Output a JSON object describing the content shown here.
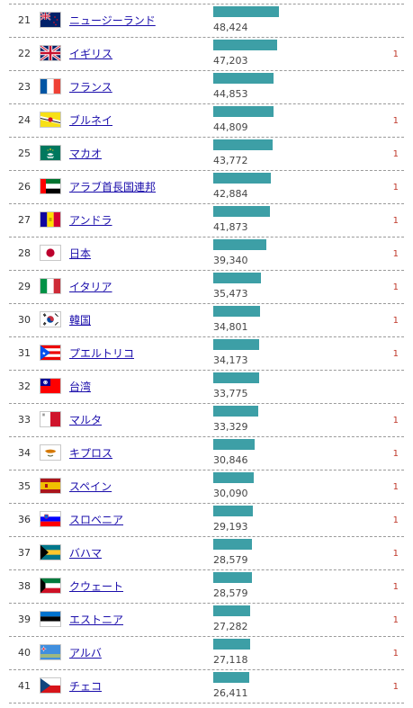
{
  "colors": {
    "bar": "#3d9fa6",
    "change": "#c0392b",
    "link": "#1a0dab"
  },
  "bar_scale_max": 70000,
  "rows": [
    {
      "rank": "21",
      "flag": "new-zealand-flag-icon",
      "name": "ニュージーランド",
      "value": "48,424",
      "value_num": 48424,
      "change": ""
    },
    {
      "rank": "22",
      "flag": "uk-flag-icon",
      "name": "イギリス",
      "value": "47,203",
      "value_num": 47203,
      "change": "1"
    },
    {
      "rank": "23",
      "flag": "france-flag-icon",
      "name": "フランス",
      "value": "44,853",
      "value_num": 44853,
      "change": ""
    },
    {
      "rank": "24",
      "flag": "brunei-flag-icon",
      "name": "ブルネイ",
      "value": "44,809",
      "value_num": 44809,
      "change": "1"
    },
    {
      "rank": "25",
      "flag": "macau-flag-icon",
      "name": "マカオ",
      "value": "43,772",
      "value_num": 43772,
      "change": "1"
    },
    {
      "rank": "26",
      "flag": "uae-flag-icon",
      "name": "アラブ首長国連邦",
      "value": "42,884",
      "value_num": 42884,
      "change": "1"
    },
    {
      "rank": "27",
      "flag": "andorra-flag-icon",
      "name": "アンドラ",
      "value": "41,873",
      "value_num": 41873,
      "change": "1"
    },
    {
      "rank": "28",
      "flag": "japan-flag-icon",
      "name": "日本",
      "value": "39,340",
      "value_num": 39340,
      "change": "1"
    },
    {
      "rank": "29",
      "flag": "italy-flag-icon",
      "name": "イタリア",
      "value": "35,473",
      "value_num": 35473,
      "change": "1"
    },
    {
      "rank": "30",
      "flag": "south-korea-flag-icon",
      "name": "韓国",
      "value": "34,801",
      "value_num": 34801,
      "change": "1"
    },
    {
      "rank": "31",
      "flag": "puerto-rico-flag-icon",
      "name": "プエルトリコ",
      "value": "34,173",
      "value_num": 34173,
      "change": "1"
    },
    {
      "rank": "32",
      "flag": "taiwan-flag-icon",
      "name": "台湾",
      "value": "33,775",
      "value_num": 33775,
      "change": ""
    },
    {
      "rank": "33",
      "flag": "malta-flag-icon",
      "name": "マルタ",
      "value": "33,329",
      "value_num": 33329,
      "change": "1"
    },
    {
      "rank": "34",
      "flag": "cyprus-flag-icon",
      "name": "キプロス",
      "value": "30,846",
      "value_num": 30846,
      "change": "1"
    },
    {
      "rank": "35",
      "flag": "spain-flag-icon",
      "name": "スペイン",
      "value": "30,090",
      "value_num": 30090,
      "change": "1"
    },
    {
      "rank": "36",
      "flag": "slovenia-flag-icon",
      "name": "スロベニア",
      "value": "29,193",
      "value_num": 29193,
      "change": "1"
    },
    {
      "rank": "37",
      "flag": "bahamas-flag-icon",
      "name": "バハマ",
      "value": "28,579",
      "value_num": 28579,
      "change": "1"
    },
    {
      "rank": "38",
      "flag": "kuwait-flag-icon",
      "name": "クウェート",
      "value": "28,579",
      "value_num": 28579,
      "change": "1"
    },
    {
      "rank": "39",
      "flag": "estonia-flag-icon",
      "name": "エストニア",
      "value": "27,282",
      "value_num": 27282,
      "change": "1"
    },
    {
      "rank": "40",
      "flag": "aruba-flag-icon",
      "name": "アルバ",
      "value": "27,118",
      "value_num": 27118,
      "change": "1"
    },
    {
      "rank": "41",
      "flag": "czech-flag-icon",
      "name": "チェコ",
      "value": "26,411",
      "value_num": 26411,
      "change": "1"
    }
  ]
}
